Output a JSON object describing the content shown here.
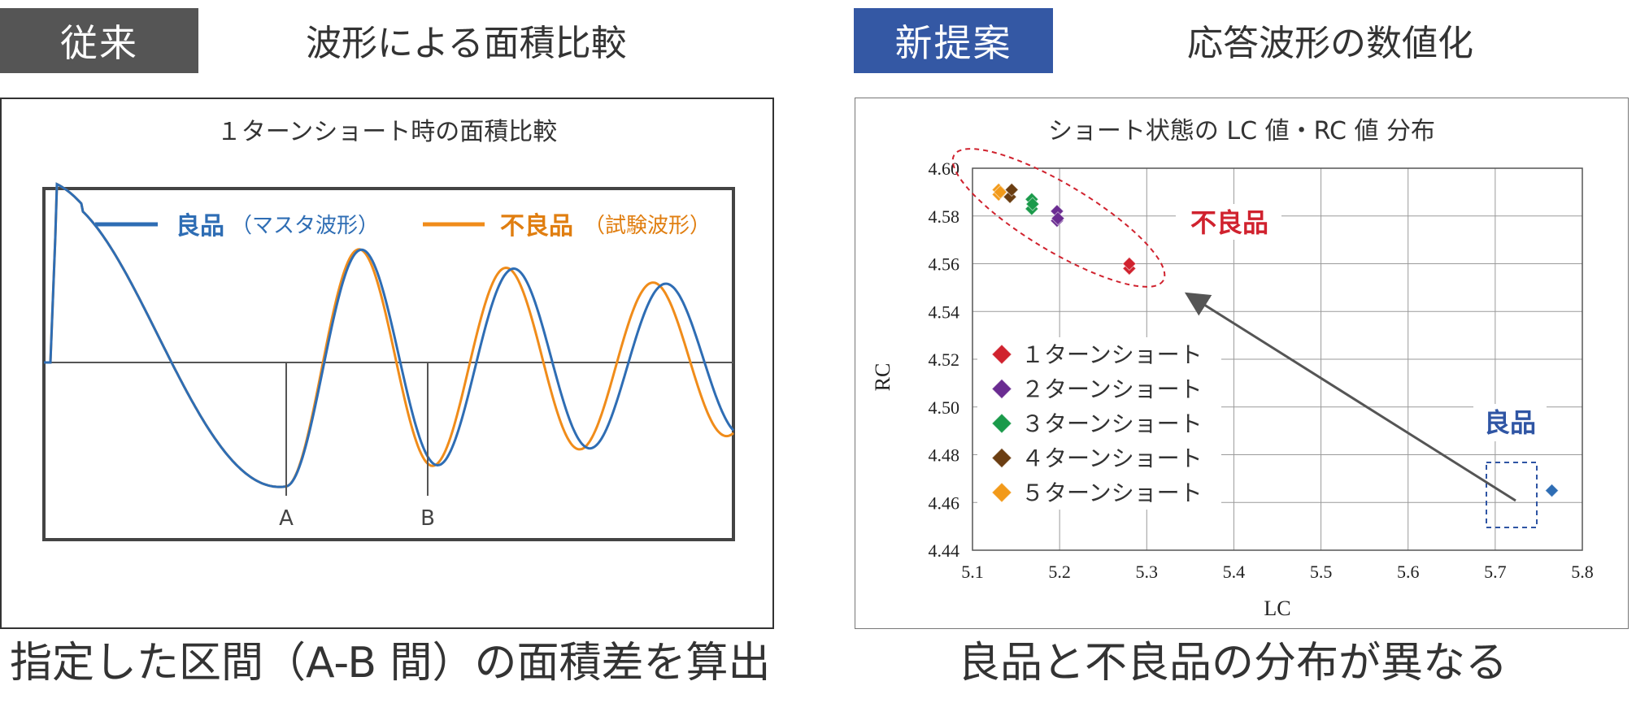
{
  "left": {
    "tag": "従来",
    "heading": "波形による面積比較",
    "caption": "指定した区間（A-B 間）の面積差を算出",
    "chart_data": {
      "type": "line",
      "title": "１ターンショート時の面積比較",
      "series": [
        {
          "name": "良品",
          "note": "（マスタ波形）",
          "color": "#2e6db4",
          "freq_scale": 1.0
        },
        {
          "name": "不良品",
          "note": "（試験波形）",
          "color": "#f08c1a",
          "freq_scale": 1.035
        }
      ],
      "markers": [
        "A",
        "B"
      ],
      "grid": false
    }
  },
  "right": {
    "tag": "新提案",
    "heading": "応答波形の数値化",
    "caption": "良品と不良品の分布が異なる",
    "chart_data": {
      "type": "scatter",
      "title": "ショート状態の LC 値・RC 値 分布",
      "xlabel": "LC",
      "ylabel": "RC",
      "xlim": [
        5.1,
        5.8
      ],
      "ylim": [
        4.44,
        4.6
      ],
      "xticks": [
        "5.1",
        "5.2",
        "5.3",
        "5.4",
        "5.5",
        "5.6",
        "5.7",
        "5.8"
      ],
      "yticks": [
        "4.44",
        "4.46",
        "4.48",
        "4.50",
        "4.52",
        "4.54",
        "4.56",
        "4.58",
        "4.60"
      ],
      "grid": true,
      "legend_position": "left",
      "series": [
        {
          "name": "１ターンショート",
          "color": "#d0222e",
          "points": [
            [
              5.28,
              4.558
            ],
            [
              5.28,
              4.56
            ]
          ]
        },
        {
          "name": "２ターンショート",
          "color": "#6a2c91",
          "points": [
            [
              5.197,
              4.578
            ],
            [
              5.197,
              4.582
            ],
            [
              5.198,
              4.579
            ]
          ]
        },
        {
          "name": "３ターンショート",
          "color": "#1a9a4a",
          "points": [
            [
              5.168,
              4.583
            ],
            [
              5.168,
              4.587
            ],
            [
              5.169,
              4.585
            ]
          ]
        },
        {
          "name": "４ターンショート",
          "color": "#6b3e12",
          "points": [
            [
              5.143,
              4.588
            ],
            [
              5.145,
              4.591
            ]
          ]
        },
        {
          "name": "５ターンショート",
          "color": "#f29a1a",
          "points": [
            [
              5.13,
              4.589
            ],
            [
              5.13,
              4.591
            ],
            [
              5.132,
              4.59
            ]
          ]
        },
        {
          "name": "",
          "color": "#2e6db4",
          "points": [
            [
              5.765,
              4.465
            ]
          ]
        }
      ],
      "annotations": [
        {
          "text": "不良品",
          "color": "#d0222e"
        },
        {
          "text": "良品",
          "color": "#2f55a4"
        }
      ]
    }
  }
}
